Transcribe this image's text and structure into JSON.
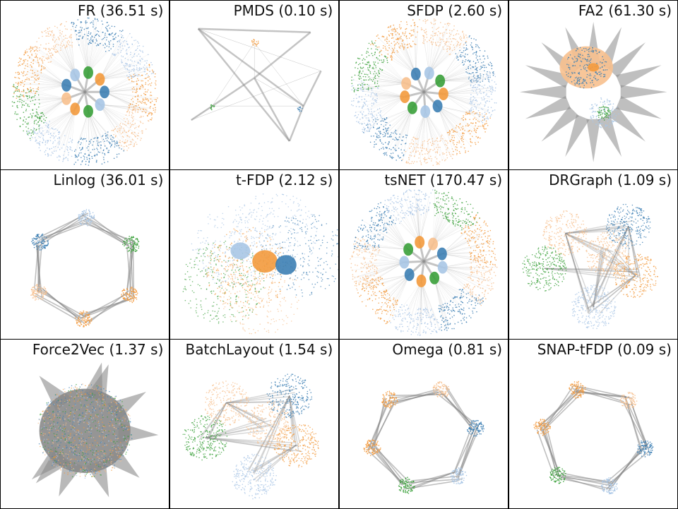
{
  "colors": {
    "orange": "#f39a3d",
    "light_orange": "#f7c08e",
    "blue": "#3d7fb4",
    "light_blue": "#a9c6e6",
    "green": "#3aa03a",
    "edge": "#8a8a8a"
  },
  "panels": [
    {
      "id": "fr",
      "title": "FR (36.51 s)",
      "style": "radial"
    },
    {
      "id": "pmds",
      "title": "PMDS (0.10 s)",
      "style": "sparse"
    },
    {
      "id": "sfdp",
      "title": "SFDP (2.60 s)",
      "style": "radial"
    },
    {
      "id": "fa2",
      "title": "FA2 (61.30 s)",
      "style": "star"
    },
    {
      "id": "linlog",
      "title": "Linlog (36.01 s)",
      "style": "ring"
    },
    {
      "id": "tfdp",
      "title": "t-FDP (2.12 s)",
      "style": "blob"
    },
    {
      "id": "tsnet",
      "title": "tsNET (170.47 s)",
      "style": "radial"
    },
    {
      "id": "drgraph",
      "title": "DRGraph (1.09 s)",
      "style": "cloud"
    },
    {
      "id": "force2vec",
      "title": "Force2Vec (1.37 s)",
      "style": "hairball"
    },
    {
      "id": "batchlayout",
      "title": "BatchLayout (1.54 s)",
      "style": "cloud"
    },
    {
      "id": "omega",
      "title": "Omega (0.81 s)",
      "style": "ring"
    },
    {
      "id": "snaptfdp",
      "title": "SNAP-tFDP (0.09 s)",
      "style": "ring"
    }
  ]
}
